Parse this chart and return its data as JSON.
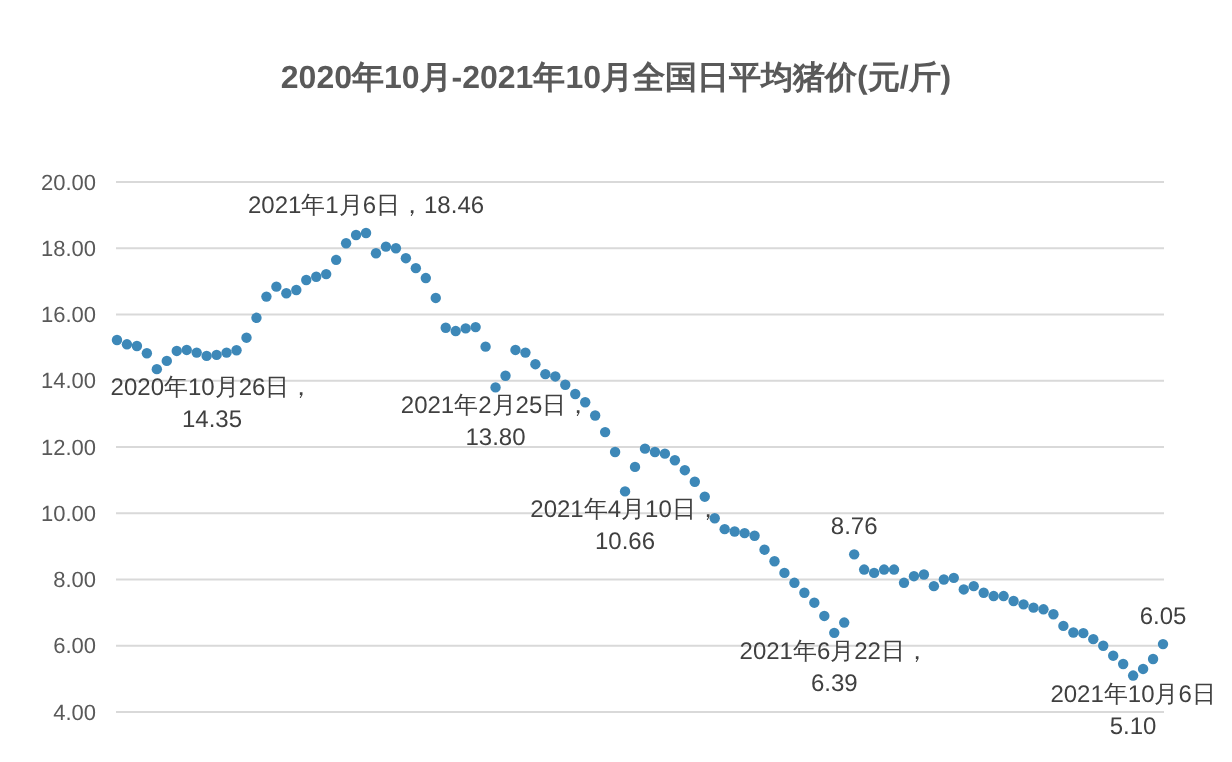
{
  "chart_data": {
    "type": "scatter",
    "title": "2020年10月-2021年10月全国日平均猪价(元/斤)",
    "categories": [
      null,
      null,
      null,
      null,
      null,
      null,
      null,
      null,
      null,
      null,
      null,
      null,
      null,
      null,
      null,
      null,
      null,
      null,
      null,
      null,
      null,
      null,
      null,
      null,
      null,
      null,
      null,
      null,
      null,
      null,
      null,
      null,
      null,
      null,
      null,
      null,
      null,
      null,
      null,
      null,
      null,
      null,
      null,
      null,
      null,
      null,
      null,
      null,
      null,
      null,
      null,
      null,
      null,
      null,
      null,
      null,
      null,
      null,
      null,
      null,
      null,
      null,
      null,
      null,
      null,
      null,
      null,
      null,
      null,
      null,
      null,
      null,
      null,
      null,
      null,
      null,
      null,
      null,
      null,
      null,
      null,
      null,
      null,
      null,
      null,
      null,
      null,
      null,
      null,
      null,
      null,
      null,
      null,
      null,
      null,
      null,
      null,
      null,
      null,
      null,
      null,
      null,
      null,
      null,
      null,
      null
    ],
    "series": [
      {
        "color": "#3d88b8",
        "values": [
          15.23,
          15.1,
          15.05,
          14.83,
          14.35,
          14.6,
          14.9,
          14.93,
          14.85,
          14.75,
          14.78,
          14.85,
          14.92,
          15.3,
          15.9,
          16.54,
          16.84,
          16.64,
          16.74,
          17.04,
          17.14,
          17.22,
          17.65,
          18.15,
          18.4,
          18.46,
          17.85,
          18.05,
          18.0,
          17.7,
          17.4,
          17.1,
          16.5,
          15.6,
          15.5,
          15.58,
          15.62,
          15.03,
          13.8,
          14.15,
          14.93,
          14.85,
          14.5,
          14.2,
          14.13,
          13.88,
          13.6,
          13.35,
          12.95,
          12.45,
          11.85,
          10.66,
          11.4,
          11.95,
          11.85,
          11.8,
          11.6,
          11.3,
          10.95,
          10.5,
          9.85,
          9.52,
          9.45,
          9.4,
          9.32,
          8.9,
          8.55,
          8.2,
          7.9,
          7.6,
          7.3,
          6.9,
          6.39,
          6.7,
          8.76,
          8.3,
          8.2,
          8.3,
          8.3,
          7.9,
          8.1,
          8.15,
          7.8,
          8.0,
          8.05,
          7.7,
          7.8,
          7.6,
          7.5,
          7.5,
          7.35,
          7.25,
          7.15,
          7.1,
          6.95,
          6.6,
          6.4,
          6.38,
          6.2,
          6.0,
          5.7,
          5.45,
          5.1,
          5.3,
          5.6,
          6.05
        ]
      }
    ],
    "ylim": [
      4,
      20
    ],
    "yticks": [
      {
        "value": 4,
        "label": "4.00"
      },
      {
        "value": 6,
        "label": "6.00"
      },
      {
        "value": 8,
        "label": "8.00"
      },
      {
        "value": 10,
        "label": "10.00"
      },
      {
        "value": 12,
        "label": "12.00"
      },
      {
        "value": 14,
        "label": "14.00"
      },
      {
        "value": 16,
        "label": "16.00"
      },
      {
        "value": 18,
        "label": "18.00"
      },
      {
        "value": 20,
        "label": "20.00"
      }
    ],
    "grid": "y",
    "marker": "circle",
    "tick_labels": "y",
    "annotations": [
      {
        "text": "2020年10月26日，\n14.35",
        "y": 14.35
      },
      {
        "text": "2021年1月6日，18.46",
        "y": 18.46
      },
      {
        "text": "2021年2月25日，\n13.80",
        "y": 13.8
      },
      {
        "text": "2021年4月10日，\n10.66",
        "y": 10.66
      },
      {
        "text": "2021年6月22日，\n6.39",
        "y": 6.39
      },
      {
        "text": "8.76",
        "y": 8.76
      },
      {
        "text": "2021年10月6日\n5.10",
        "y": 5.1
      },
      {
        "text": "6.05",
        "y": 6.05
      }
    ]
  }
}
